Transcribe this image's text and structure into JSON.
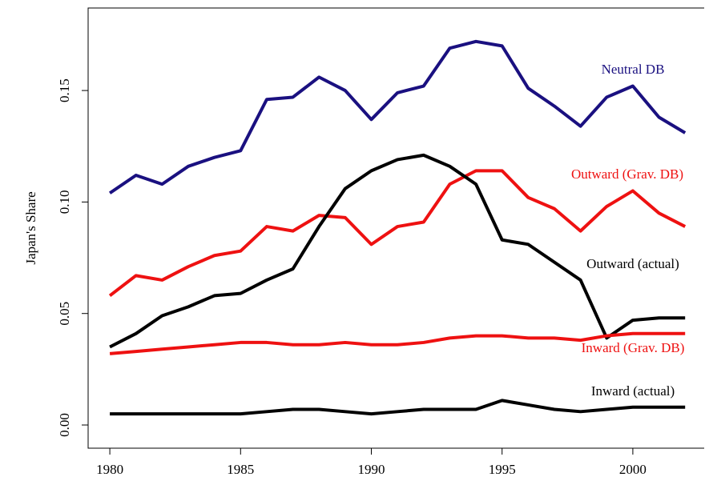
{
  "chart_data": {
    "type": "line",
    "ylabel": "Japan's Share",
    "x": [
      1980,
      1981,
      1982,
      1983,
      1984,
      1985,
      1986,
      1987,
      1988,
      1989,
      1990,
      1991,
      1992,
      1993,
      1994,
      1995,
      1996,
      1997,
      1998,
      1999,
      2000,
      2001,
      2002
    ],
    "series": [
      {
        "name": "Neutral DB",
        "color": "#1a1080",
        "values": [
          0.104,
          0.112,
          0.108,
          0.116,
          0.12,
          0.123,
          0.146,
          0.147,
          0.156,
          0.15,
          0.137,
          0.149,
          0.152,
          0.169,
          0.172,
          0.17,
          0.151,
          0.143,
          0.134,
          0.147,
          0.152,
          0.138,
          0.131
        ]
      },
      {
        "name": "Outward (Grav. DB)",
        "color": "#ee1111",
        "values": [
          0.058,
          0.067,
          0.065,
          0.071,
          0.076,
          0.078,
          0.089,
          0.087,
          0.094,
          0.093,
          0.081,
          0.089,
          0.091,
          0.108,
          0.114,
          0.114,
          0.102,
          0.097,
          0.087,
          0.098,
          0.105,
          0.095,
          0.089
        ]
      },
      {
        "name": "Outward (actual)",
        "color": "#000000",
        "values": [
          0.035,
          0.041,
          0.049,
          0.053,
          0.058,
          0.059,
          0.065,
          0.07,
          0.089,
          0.106,
          0.114,
          0.119,
          0.121,
          0.116,
          0.108,
          0.083,
          0.081,
          0.073,
          0.065,
          0.039,
          0.047,
          0.048,
          0.048
        ]
      },
      {
        "name": "Inward (Grav. DB)",
        "color": "#ee1111",
        "values": [
          0.032,
          0.033,
          0.034,
          0.035,
          0.036,
          0.037,
          0.037,
          0.036,
          0.036,
          0.037,
          0.036,
          0.036,
          0.037,
          0.039,
          0.04,
          0.04,
          0.039,
          0.039,
          0.038,
          0.04,
          0.041,
          0.041,
          0.041
        ]
      },
      {
        "name": "Inward (actual)",
        "color": "#000000",
        "values": [
          0.005,
          0.005,
          0.005,
          0.005,
          0.005,
          0.005,
          0.006,
          0.007,
          0.007,
          0.006,
          0.005,
          0.006,
          0.007,
          0.007,
          0.007,
          0.011,
          0.009,
          0.007,
          0.006,
          0.007,
          0.008,
          0.008,
          0.008
        ]
      }
    ],
    "xlim": [
      1979.17,
      2002.76
    ],
    "xticks": [
      1980,
      1985,
      1990,
      1995,
      2000
    ],
    "ylim": [
      -0.0104,
      0.187
    ],
    "yticks": [
      {
        "value": 0,
        "label": "0.00"
      },
      {
        "value": 0.05,
        "label": "0.05"
      },
      {
        "value": 0.1,
        "label": "0.10"
      },
      {
        "value": 0.15,
        "label": "0.15"
      }
    ]
  }
}
